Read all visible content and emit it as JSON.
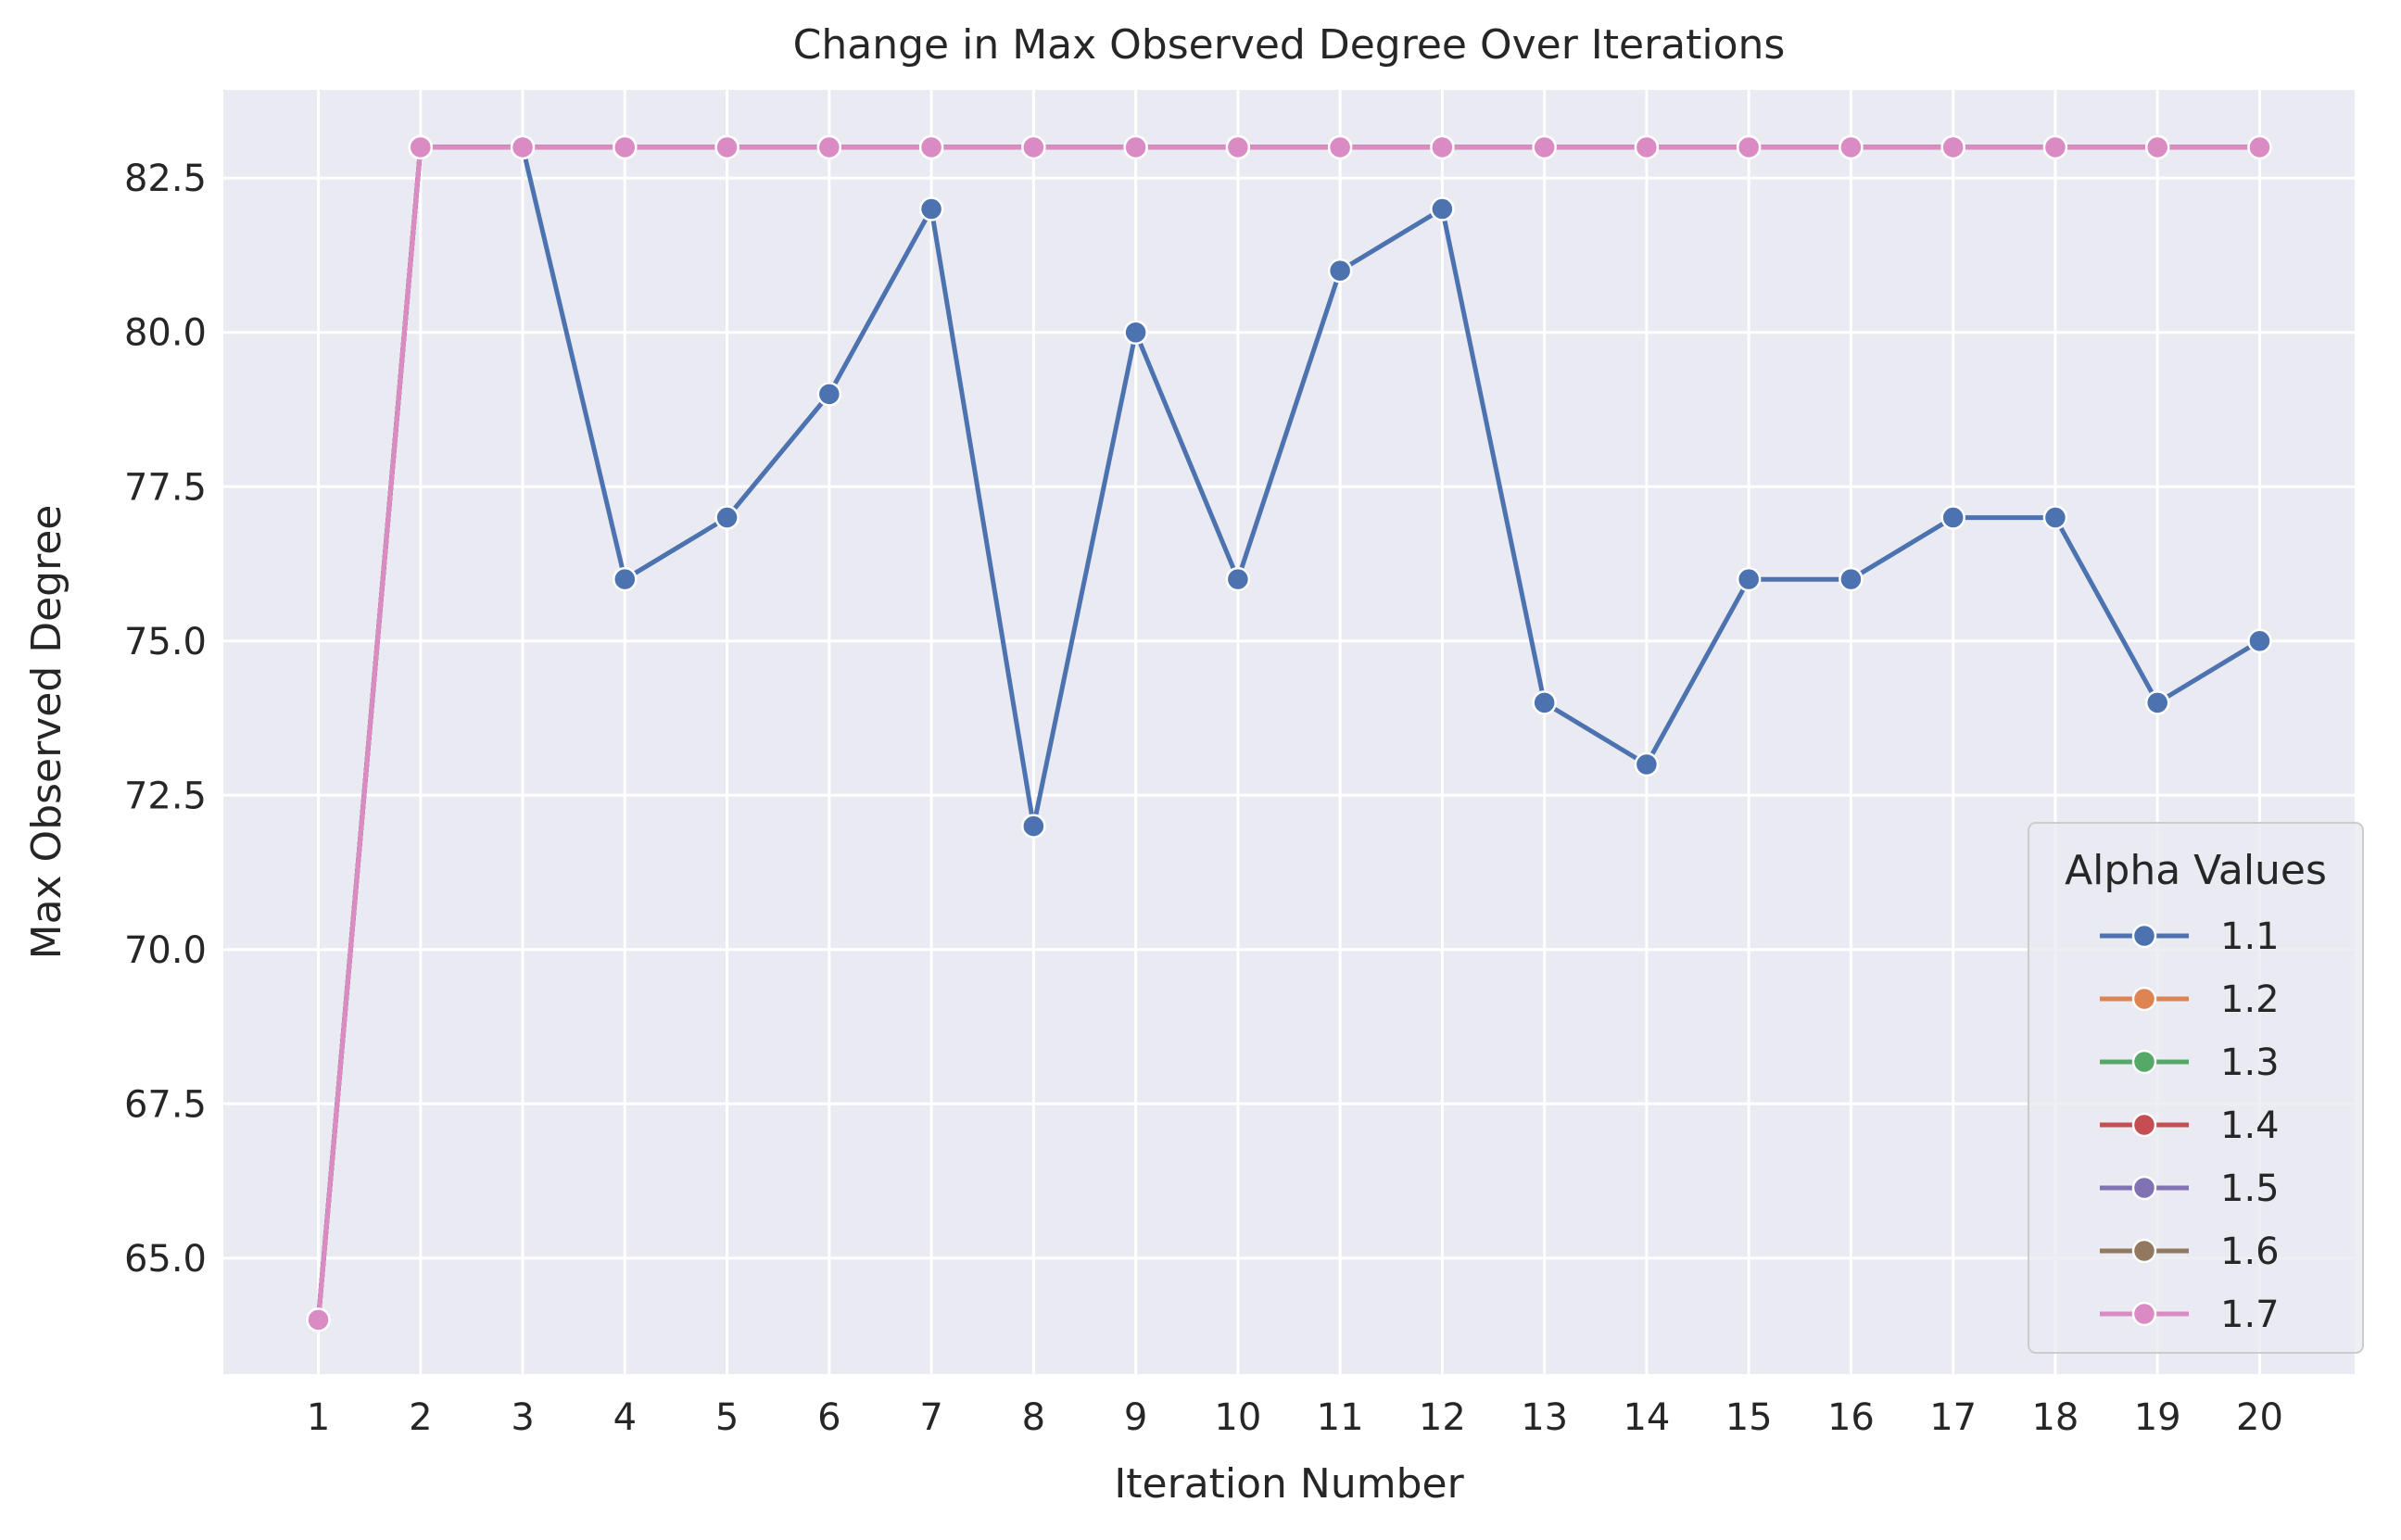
{
  "chart_data": {
    "type": "line",
    "title": "Change in Max Observed Degree Over Iterations",
    "xlabel": "Iteration Number",
    "ylabel": "Max Observed Degree",
    "x": [
      1,
      2,
      3,
      4,
      5,
      6,
      7,
      8,
      9,
      10,
      11,
      12,
      13,
      14,
      15,
      16,
      17,
      18,
      19,
      20
    ],
    "xlim": [
      0.07,
      20.93
    ],
    "ylim": [
      63.12,
      83.93
    ],
    "yticks": [
      "65.0",
      "67.5",
      "70.0",
      "72.5",
      "75.0",
      "77.5",
      "80.0",
      "82.5"
    ],
    "grid": true,
    "background": "#eaeaf2",
    "legend": {
      "title": "Alpha Values",
      "position": "bottom-right"
    },
    "series": [
      {
        "name": "1.1",
        "color": "#4c72b0",
        "values": [
          64,
          83,
          83,
          76,
          77,
          79,
          82,
          72,
          80,
          76,
          81,
          82,
          74,
          73,
          76,
          76,
          77,
          77,
          74,
          75
        ]
      },
      {
        "name": "1.2",
        "color": "#dd8452",
        "values": [
          64,
          83,
          83,
          83,
          83,
          83,
          83,
          83,
          83,
          83,
          83,
          83,
          83,
          83,
          83,
          83,
          83,
          83,
          83,
          83
        ]
      },
      {
        "name": "1.3",
        "color": "#55a868",
        "values": [
          64,
          83,
          83,
          83,
          83,
          83,
          83,
          83,
          83,
          83,
          83,
          83,
          83,
          83,
          83,
          83,
          83,
          83,
          83,
          83
        ]
      },
      {
        "name": "1.4",
        "color": "#c44e52",
        "values": [
          64,
          83,
          83,
          83,
          83,
          83,
          83,
          83,
          83,
          83,
          83,
          83,
          83,
          83,
          83,
          83,
          83,
          83,
          83,
          83
        ]
      },
      {
        "name": "1.5",
        "color": "#8172b3",
        "values": [
          64,
          83,
          83,
          83,
          83,
          83,
          83,
          83,
          83,
          83,
          83,
          83,
          83,
          83,
          83,
          83,
          83,
          83,
          83,
          83
        ]
      },
      {
        "name": "1.6",
        "color": "#937860",
        "values": [
          64,
          83,
          83,
          83,
          83,
          83,
          83,
          83,
          83,
          83,
          83,
          83,
          83,
          83,
          83,
          83,
          83,
          83,
          83,
          83
        ]
      },
      {
        "name": "1.7",
        "color": "#da8bc3",
        "values": [
          64,
          83,
          83,
          83,
          83,
          83,
          83,
          83,
          83,
          83,
          83,
          83,
          83,
          83,
          83,
          83,
          83,
          83,
          83,
          83
        ]
      }
    ]
  }
}
